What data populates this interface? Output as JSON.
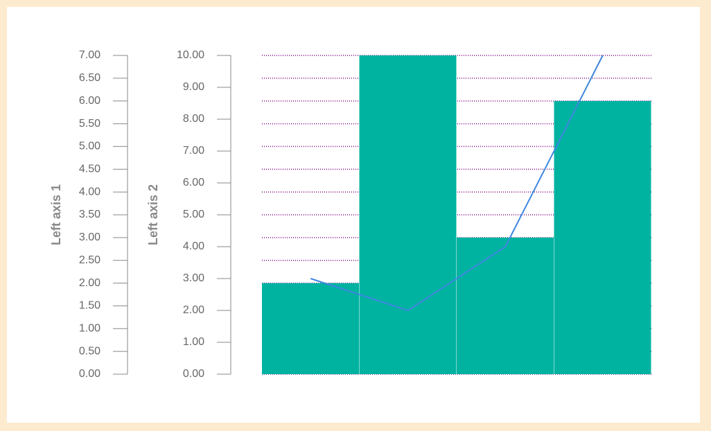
{
  "chart_data": {
    "type": "bar",
    "y_label": "Left axis 1",
    "y2_label": "Left axis 2",
    "ylim": [
      0,
      7
    ],
    "yticks": [
      {
        "value": 0,
        "label": "0.00"
      },
      {
        "value": 0.5,
        "label": "0.50"
      },
      {
        "value": 1,
        "label": "1.00"
      },
      {
        "value": 1.5,
        "label": "1.50"
      },
      {
        "value": 2,
        "label": "2.00"
      },
      {
        "value": 2.5,
        "label": "2.50"
      },
      {
        "value": 3,
        "label": "3.00"
      },
      {
        "value": 3.5,
        "label": "3.50"
      },
      {
        "value": 4,
        "label": "4.00"
      },
      {
        "value": 4.5,
        "label": "4.50"
      },
      {
        "value": 5,
        "label": "5.00"
      },
      {
        "value": 5.5,
        "label": "5.50"
      },
      {
        "value": 6,
        "label": "6.00"
      },
      {
        "value": 6.5,
        "label": "6.50"
      },
      {
        "value": 7,
        "label": "7.00"
      }
    ],
    "y2lim": [
      0,
      10
    ],
    "y2ticks": [
      {
        "value": 0,
        "label": "0.00"
      },
      {
        "value": 1,
        "label": "1.00"
      },
      {
        "value": 2,
        "label": "2.00"
      },
      {
        "value": 3,
        "label": "3.00"
      },
      {
        "value": 4,
        "label": "4.00"
      },
      {
        "value": 5,
        "label": "5.00"
      },
      {
        "value": 6,
        "label": "6.00"
      },
      {
        "value": 7,
        "label": "7.00"
      },
      {
        "value": 8,
        "label": "8.00"
      },
      {
        "value": 9,
        "label": "9.00"
      },
      {
        "value": 10,
        "label": "10.00"
      }
    ],
    "grid": true,
    "grid_color": "#800080",
    "series": [
      {
        "type": "bar",
        "color": "#00b3a1",
        "values": [
          2,
          7,
          3,
          6
        ]
      },
      {
        "type": "line",
        "color": "#3f86e0",
        "axis": "y2",
        "values": [
          3,
          2,
          4,
          10
        ]
      }
    ]
  }
}
